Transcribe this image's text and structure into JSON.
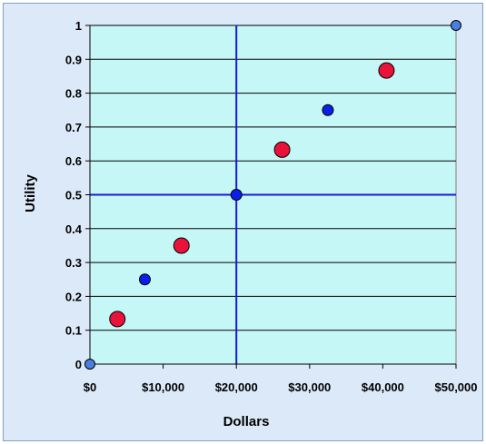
{
  "chart_data": {
    "type": "scatter",
    "xlabel": "Dollars",
    "ylabel": "Utility",
    "xlim": [
      0,
      50000
    ],
    "ylim": [
      0,
      1
    ],
    "x_ticks": [
      0,
      10000,
      20000,
      30000,
      40000,
      50000
    ],
    "x_tick_labels": [
      "$0",
      "$10,000",
      "$20,000",
      "$30,000",
      "$40,000",
      "$50,000"
    ],
    "y_ticks": [
      0,
      0.1,
      0.2,
      0.3,
      0.4,
      0.5,
      0.6,
      0.7,
      0.8,
      0.9,
      1
    ],
    "y_tick_labels": [
      "0",
      "0.1",
      "0.2",
      "0.3",
      "0.4",
      "0.5",
      "0.6",
      "0.7",
      "0.8",
      "0.9",
      "1"
    ],
    "grid": "horizontal",
    "reference_lines": {
      "x": 20000,
      "y": 0.5
    },
    "series": [
      {
        "points": [
          [
            0,
            0.0
          ],
          [
            50000,
            1.0
          ]
        ],
        "color": "#4a7fe0",
        "marker": "small"
      },
      {
        "points": [
          [
            7500,
            0.25
          ],
          [
            20000,
            0.5
          ],
          [
            32500,
            0.75
          ]
        ],
        "color": "#0a1fe8",
        "marker": "medium"
      },
      {
        "points": [
          [
            3750,
            0.133
          ],
          [
            12500,
            0.35
          ],
          [
            26250,
            0.633
          ],
          [
            40500,
            0.867
          ]
        ],
        "color": "#e8123a",
        "marker": "large"
      }
    ]
  },
  "colors": {
    "plot_background": "#c6f7f7",
    "frame_background": "#dce9f8",
    "reference_line": "#1a1ad6",
    "gridline": "#000000"
  }
}
